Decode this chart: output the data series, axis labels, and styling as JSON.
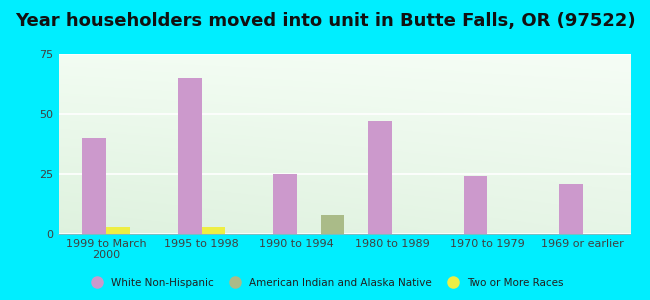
{
  "title": "Year householders moved into unit in Butte Falls, OR (97522)",
  "categories": [
    "1999 to March\n2000",
    "1995 to 1998",
    "1990 to 1994",
    "1980 to 1989",
    "1970 to 1979",
    "1969 or earlier"
  ],
  "white_non_hispanic": [
    40,
    65,
    25,
    47,
    24,
    21
  ],
  "american_indian": [
    0,
    0,
    8,
    0,
    0,
    0
  ],
  "two_or_more": [
    3,
    3,
    0,
    0,
    0,
    0
  ],
  "white_color": "#cc99cc",
  "american_indian_color": "#aabb88",
  "two_or_more_color": "#eeee44",
  "background_outer": "#00eeff",
  "ylim": [
    0,
    75
  ],
  "yticks": [
    0,
    25,
    50,
    75
  ],
  "bar_width": 0.25,
  "title_fontsize": 13,
  "tick_fontsize": 8
}
